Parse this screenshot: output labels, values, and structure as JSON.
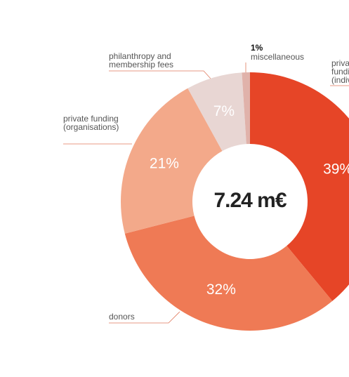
{
  "chart_data": {
    "type": "donut",
    "center_label": "7.24 m€",
    "categories": [
      "private funding (individuals)",
      "donors",
      "private funding (organisations)",
      "philanthropy and membership fees",
      "miscellaneous"
    ],
    "values": [
      39,
      32,
      21,
      7,
      1
    ],
    "value_labels": [
      "39%",
      "32%",
      "21%",
      "7%",
      "1%"
    ],
    "colors": [
      "#e64527",
      "#ef7a55",
      "#f3a98a",
      "#e8d6d3",
      "#e0b2aa"
    ]
  }
}
